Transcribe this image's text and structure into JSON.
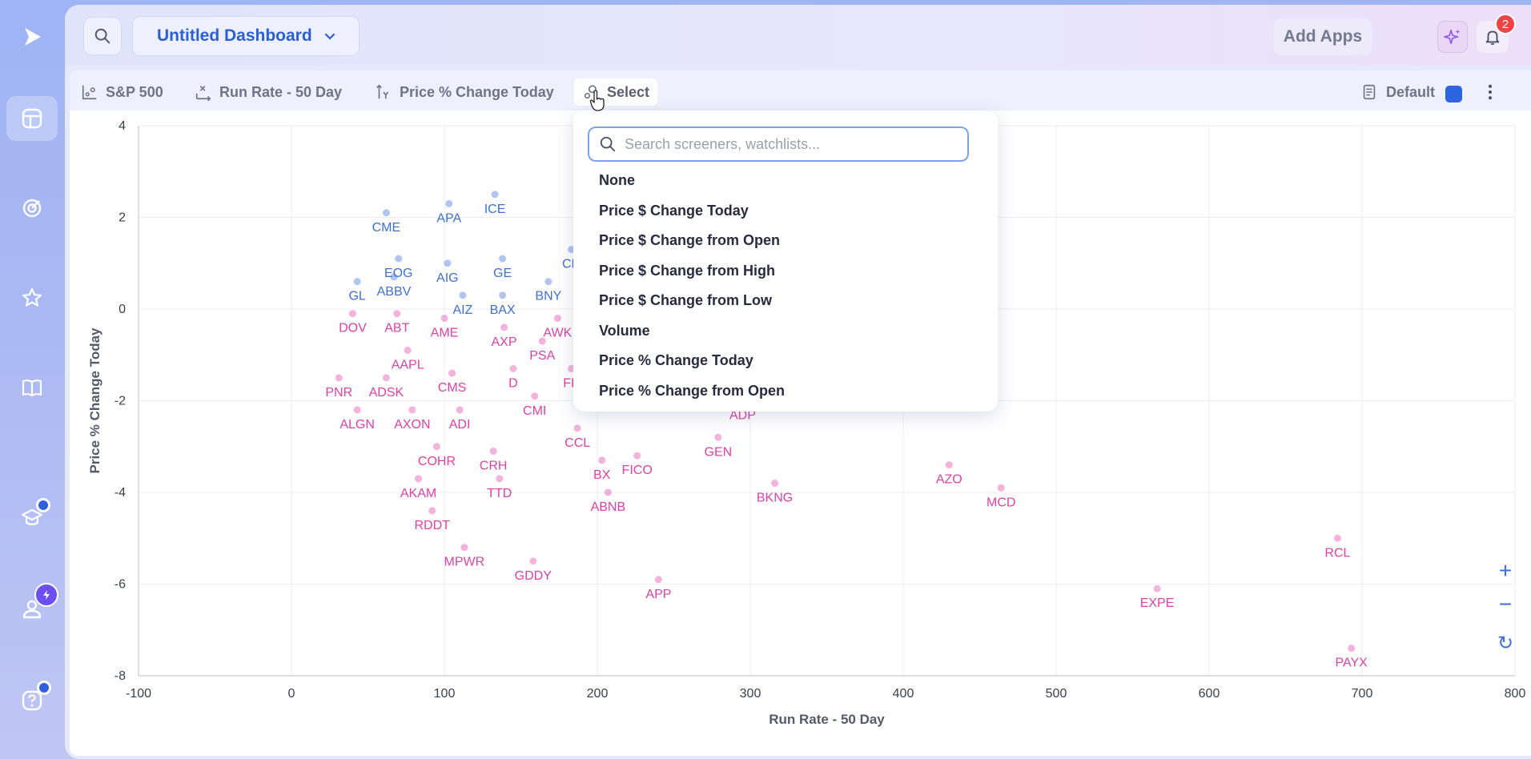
{
  "header": {
    "dashboard_title": "Untitled Dashboard",
    "add_apps_label": "Add Apps",
    "notification_count": "2"
  },
  "toolbar": {
    "universe": "S&P 500",
    "x_axis_metric": "Run Rate - 50 Day",
    "y_axis_metric": "Price % Change Today",
    "color_select": "Select",
    "layout": "Default",
    "accent_color": "#2c63e0"
  },
  "dropdown": {
    "search_placeholder": "Search screeners, watchlists...",
    "options": [
      "None",
      "Price $ Change Today",
      "Price $ Change from Open",
      "Price $ Change from High",
      "Price $ Change from Low",
      "Volume",
      "Price % Change Today",
      "Price % Change from Open"
    ]
  },
  "zoom": {
    "in": "+",
    "out": "−",
    "reset": "↻"
  },
  "chart_data": {
    "type": "scatter",
    "xlabel": "Run Rate - 50 Day",
    "ylabel": "Price % Change Today",
    "xlim": [
      -100,
      800
    ],
    "ylim": [
      -8,
      4
    ],
    "xticks": [
      -100,
      0,
      100,
      200,
      300,
      400,
      500,
      600,
      700,
      800
    ],
    "yticks": [
      4,
      2,
      0,
      -2,
      -4,
      -6,
      -8
    ],
    "grid": true,
    "colors": {
      "positive": "#3d6fd9",
      "negative": "#e040a8"
    },
    "labeled_points": [
      {
        "name": "CME",
        "x": 62,
        "y": 2.1
      },
      {
        "name": "APA",
        "x": 103,
        "y": 2.3
      },
      {
        "name": "ICE",
        "x": 133,
        "y": 2.5
      },
      {
        "name": "EOG",
        "x": 70,
        "y": 1.1
      },
      {
        "name": "AIG",
        "x": 102,
        "y": 1.0
      },
      {
        "name": "GE",
        "x": 138,
        "y": 1.1
      },
      {
        "name": "CD",
        "x": 183,
        "y": 1.3
      },
      {
        "name": "GL",
        "x": 43,
        "y": 0.6
      },
      {
        "name": "ABBV",
        "x": 67,
        "y": 0.7
      },
      {
        "name": "BNY",
        "x": 168,
        "y": 0.6
      },
      {
        "name": "AIZ",
        "x": 112,
        "y": 0.3
      },
      {
        "name": "BAX",
        "x": 138,
        "y": 0.3
      },
      {
        "name": "DOV",
        "x": 40,
        "y": -0.1
      },
      {
        "name": "ABT",
        "x": 69,
        "y": -0.1
      },
      {
        "name": "AME",
        "x": 100,
        "y": -0.2
      },
      {
        "name": "AWK",
        "x": 174,
        "y": -0.2
      },
      {
        "name": "AXP",
        "x": 139,
        "y": -0.4
      },
      {
        "name": "PSA",
        "x": 164,
        "y": -0.7
      },
      {
        "name": "AAPL",
        "x": 76,
        "y": -0.9
      },
      {
        "name": "PNR",
        "x": 31,
        "y": -1.5
      },
      {
        "name": "ADSK",
        "x": 62,
        "y": -1.5
      },
      {
        "name": "CMS",
        "x": 105,
        "y": -1.4
      },
      {
        "name": "D",
        "x": 145,
        "y": -1.3
      },
      {
        "name": "FE",
        "x": 183,
        "y": -1.3
      },
      {
        "name": "CMI",
        "x": 159,
        "y": -1.9
      },
      {
        "name": "ALGN",
        "x": 43,
        "y": -2.2
      },
      {
        "name": "AXON",
        "x": 79,
        "y": -2.2
      },
      {
        "name": "ADI",
        "x": 110,
        "y": -2.2
      },
      {
        "name": "ADP",
        "x": 295,
        "y": -2.0
      },
      {
        "name": "GEN",
        "x": 279,
        "y": -2.8
      },
      {
        "name": "CCL",
        "x": 187,
        "y": -2.6
      },
      {
        "name": "COHR",
        "x": 95,
        "y": -3.0
      },
      {
        "name": "CRH",
        "x": 132,
        "y": -3.1
      },
      {
        "name": "BX",
        "x": 203,
        "y": -3.3
      },
      {
        "name": "FICO",
        "x": 226,
        "y": -3.2
      },
      {
        "name": "AZO",
        "x": 430,
        "y": -3.4
      },
      {
        "name": "BKNG",
        "x": 316,
        "y": -3.8
      },
      {
        "name": "MCD",
        "x": 464,
        "y": -3.9
      },
      {
        "name": "AKAM",
        "x": 83,
        "y": -3.7
      },
      {
        "name": "TTD",
        "x": 136,
        "y": -3.7
      },
      {
        "name": "ABNB",
        "x": 207,
        "y": -4.0
      },
      {
        "name": "RDDT",
        "x": 92,
        "y": -4.4
      },
      {
        "name": "MPWR",
        "x": 113,
        "y": -5.2
      },
      {
        "name": "GDDY",
        "x": 158,
        "y": -5.5
      },
      {
        "name": "APP",
        "x": 240,
        "y": -5.9
      },
      {
        "name": "RCL",
        "x": 684,
        "y": -5.0
      },
      {
        "name": "EXPE",
        "x": 566,
        "y": -6.1
      },
      {
        "name": "PAYX",
        "x": 693,
        "y": -7.4
      }
    ]
  }
}
